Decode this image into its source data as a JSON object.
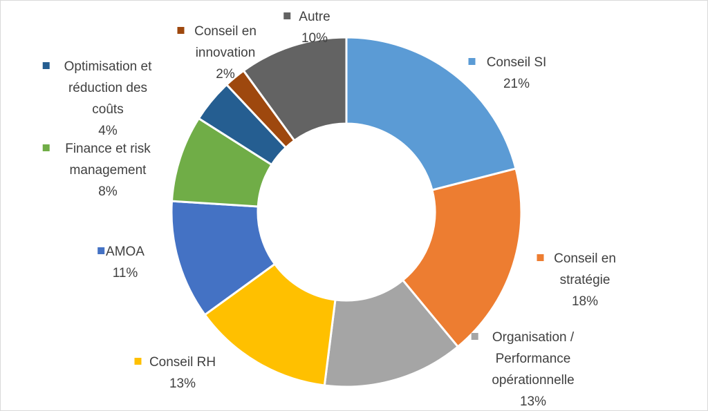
{
  "chart_data": {
    "type": "pie",
    "variant": "donut",
    "title": "",
    "legend": "none",
    "categories": [
      "Conseil SI",
      "Conseil en stratégie",
      "Organisation / Performance opérationnelle",
      "Conseil RH",
      "AMOA",
      "Finance et risk management",
      "Optimisation et réduction des coûts",
      "Conseil en innovation",
      "Autre"
    ],
    "values": [
      21,
      18,
      13,
      13,
      11,
      8,
      4,
      2,
      10
    ],
    "labels": [
      "21%",
      "18%",
      "13%",
      "13%",
      "11%",
      "8%",
      "4%",
      "2%",
      "10%"
    ],
    "colors": [
      "#5b9bd5",
      "#ed7d31",
      "#a5a5a5",
      "#ffc000",
      "#4472c4",
      "#70ad47",
      "#255e91",
      "#9e480e",
      "#636363"
    ]
  }
}
